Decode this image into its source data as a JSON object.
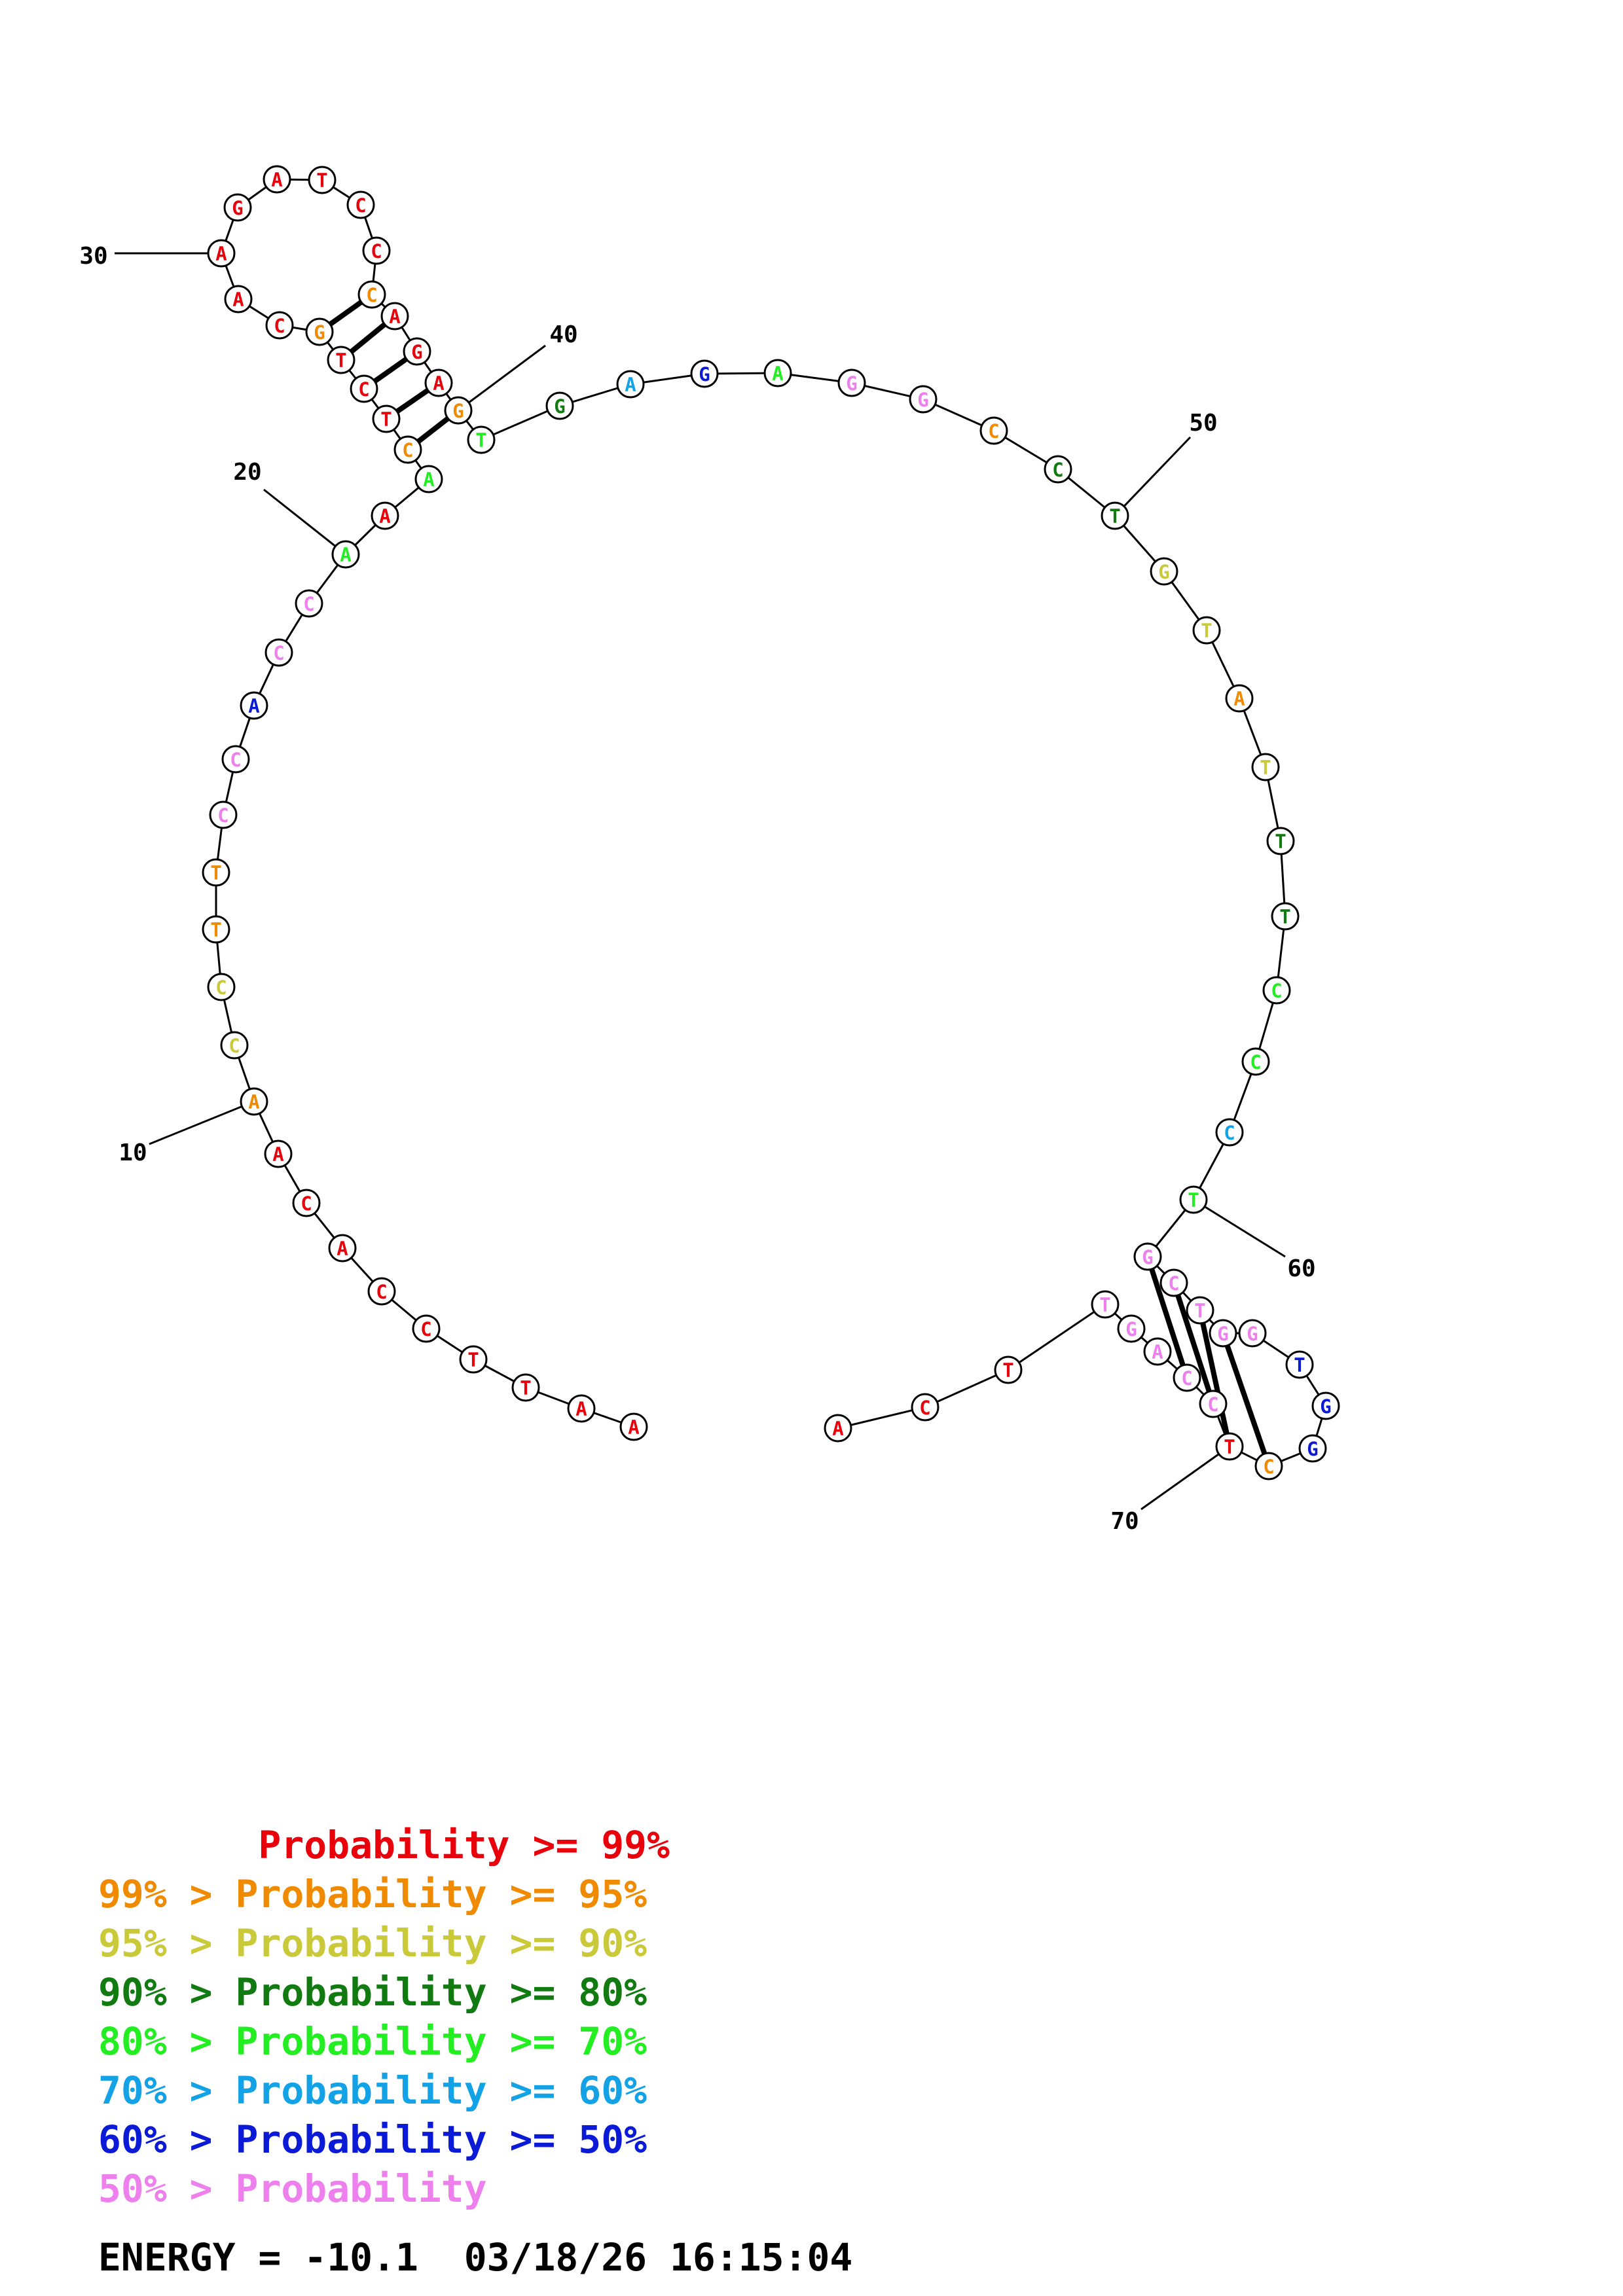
{
  "colors": {
    "p99": "#e8000b",
    "p95": "#f08a00",
    "p90": "#c9c93a",
    "p80": "#117a11",
    "p70": "#22ee22",
    "p60": "#14a2e6",
    "p50": "#0a1ad6",
    "plow": "#ee80ee"
  },
  "nucleotides": [
    {
      "n": 1,
      "b": "A",
      "c": "p99"
    },
    {
      "n": 2,
      "b": "A",
      "c": "p99"
    },
    {
      "n": 3,
      "b": "T",
      "c": "p99"
    },
    {
      "n": 4,
      "b": "T",
      "c": "p99"
    },
    {
      "n": 5,
      "b": "C",
      "c": "p99"
    },
    {
      "n": 6,
      "b": "C",
      "c": "p99"
    },
    {
      "n": 7,
      "b": "A",
      "c": "p99"
    },
    {
      "n": 8,
      "b": "C",
      "c": "p99"
    },
    {
      "n": 9,
      "b": "A",
      "c": "p99"
    },
    {
      "n": 10,
      "b": "A",
      "c": "p95"
    },
    {
      "n": 11,
      "b": "C",
      "c": "p90"
    },
    {
      "n": 12,
      "b": "C",
      "c": "p90"
    },
    {
      "n": 13,
      "b": "T",
      "c": "p95"
    },
    {
      "n": 14,
      "b": "T",
      "c": "p95"
    },
    {
      "n": 15,
      "b": "C",
      "c": "plow"
    },
    {
      "n": 16,
      "b": "C",
      "c": "plow"
    },
    {
      "n": 17,
      "b": "A",
      "c": "p50"
    },
    {
      "n": 18,
      "b": "C",
      "c": "plow"
    },
    {
      "n": 19,
      "b": "C",
      "c": "plow"
    },
    {
      "n": 20,
      "b": "A",
      "c": "p70"
    },
    {
      "n": 21,
      "b": "A",
      "c": "p99"
    },
    {
      "n": 22,
      "b": "A",
      "c": "p70"
    },
    {
      "n": 23,
      "b": "C",
      "c": "p95"
    },
    {
      "n": 24,
      "b": "T",
      "c": "p99"
    },
    {
      "n": 25,
      "b": "C",
      "c": "p99"
    },
    {
      "n": 26,
      "b": "T",
      "c": "p99"
    },
    {
      "n": 27,
      "b": "G",
      "c": "p95"
    },
    {
      "n": 28,
      "b": "C",
      "c": "p99"
    },
    {
      "n": 29,
      "b": "A",
      "c": "p99"
    },
    {
      "n": 30,
      "b": "A",
      "c": "p99"
    },
    {
      "n": 31,
      "b": "G",
      "c": "p99"
    },
    {
      "n": 32,
      "b": "A",
      "c": "p99"
    },
    {
      "n": 33,
      "b": "T",
      "c": "p99"
    },
    {
      "n": 34,
      "b": "C",
      "c": "p99"
    },
    {
      "n": 35,
      "b": "C",
      "c": "p99"
    },
    {
      "n": 36,
      "b": "C",
      "c": "p95"
    },
    {
      "n": 37,
      "b": "A",
      "c": "p99"
    },
    {
      "n": 38,
      "b": "G",
      "c": "p99"
    },
    {
      "n": 39,
      "b": "A",
      "c": "p99"
    },
    {
      "n": 40,
      "b": "G",
      "c": "p95"
    },
    {
      "n": 41,
      "b": "T",
      "c": "p70"
    },
    {
      "n": 42,
      "b": "G",
      "c": "p80"
    },
    {
      "n": 43,
      "b": "A",
      "c": "p60"
    },
    {
      "n": 44,
      "b": "G",
      "c": "p50"
    },
    {
      "n": 45,
      "b": "A",
      "c": "p70"
    },
    {
      "n": 46,
      "b": "G",
      "c": "plow"
    },
    {
      "n": 47,
      "b": "G",
      "c": "plow"
    },
    {
      "n": 48,
      "b": "C",
      "c": "p95"
    },
    {
      "n": 49,
      "b": "C",
      "c": "p80"
    },
    {
      "n": 50,
      "b": "T",
      "c": "p80"
    },
    {
      "n": 51,
      "b": "G",
      "c": "p90"
    },
    {
      "n": 52,
      "b": "T",
      "c": "p90"
    },
    {
      "n": 53,
      "b": "A",
      "c": "p95"
    },
    {
      "n": 54,
      "b": "T",
      "c": "p90"
    },
    {
      "n": 55,
      "b": "T",
      "c": "p80"
    },
    {
      "n": 56,
      "b": "T",
      "c": "p80"
    },
    {
      "n": 57,
      "b": "C",
      "c": "p70"
    },
    {
      "n": 58,
      "b": "C",
      "c": "p70"
    },
    {
      "n": 59,
      "b": "C",
      "c": "p60"
    },
    {
      "n": 60,
      "b": "T",
      "c": "p70"
    },
    {
      "n": 61,
      "b": "G",
      "c": "plow"
    },
    {
      "n": 62,
      "b": "C",
      "c": "plow"
    },
    {
      "n": 63,
      "b": "T",
      "c": "plow"
    },
    {
      "n": 64,
      "b": "G",
      "c": "plow"
    },
    {
      "n": 65,
      "b": "G",
      "c": "plow"
    },
    {
      "n": 66,
      "b": "T",
      "c": "p50"
    },
    {
      "n": 67,
      "b": "G",
      "c": "p50"
    },
    {
      "n": 68,
      "b": "G",
      "c": "p50"
    },
    {
      "n": 69,
      "b": "C",
      "c": "p95"
    },
    {
      "n": 70,
      "b": "T",
      "c": "p99"
    },
    {
      "n": 71,
      "b": "C",
      "c": "plow"
    },
    {
      "n": 72,
      "b": "C",
      "c": "plow"
    },
    {
      "n": 73,
      "b": "A",
      "c": "plow"
    },
    {
      "n": 74,
      "b": "G",
      "c": "plow"
    },
    {
      "n": 75,
      "b": "T",
      "c": "plow"
    },
    {
      "n": 76,
      "b": "T",
      "c": "p99"
    },
    {
      "n": 77,
      "b": "C",
      "c": "p99"
    },
    {
      "n": 78,
      "b": "A",
      "c": "p99"
    }
  ],
  "pairs": [
    [
      23,
      40
    ],
    [
      24,
      39
    ],
    [
      25,
      38
    ],
    [
      26,
      37
    ],
    [
      27,
      36
    ],
    [
      61,
      72
    ],
    [
      62,
      71
    ],
    [
      63,
      70
    ],
    [
      64,
      69
    ]
  ],
  "tick_labels": [
    "10",
    "20",
    "30",
    "40",
    "50",
    "60",
    "70"
  ],
  "legend": [
    {
      "text": "       Probability >= 99%",
      "c": "p99"
    },
    {
      "text": "99% > Probability >= 95%",
      "c": "p95"
    },
    {
      "text": "95% > Probability >= 90%",
      "c": "p90"
    },
    {
      "text": "90% > Probability >= 80%",
      "c": "p80"
    },
    {
      "text": "80% > Probability >= 70%",
      "c": "p70"
    },
    {
      "text": "70% > Probability >= 60%",
      "c": "p60"
    },
    {
      "text": "60% > Probability >= 50%",
      "c": "p50"
    },
    {
      "text": "50% > Probability",
      "c": "plow"
    }
  ],
  "energy_text": "ENERGY = -10.1  03/18/26 16:15:04"
}
